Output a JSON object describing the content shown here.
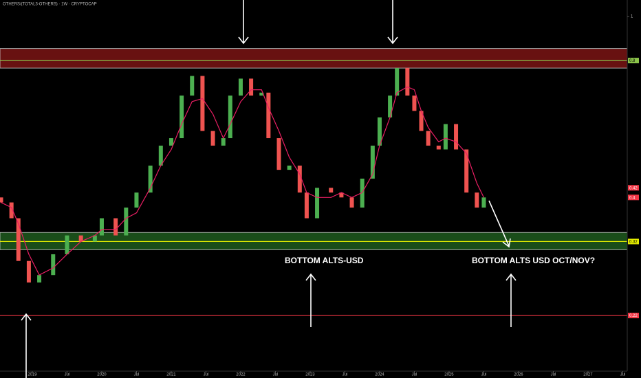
{
  "chart_data": {
    "type": "candlestick",
    "title": "OTHERS/(TOTAL3-OTHERS) · 1W · CRYPTOCAP",
    "x": [
      2018.55,
      2018.7,
      2018.8,
      2018.95,
      2019.1,
      2019.3,
      2019.5,
      2019.7,
      2019.9,
      2020.0,
      2020.2,
      2020.35,
      2020.5,
      2020.7,
      2020.85,
      2021.0,
      2021.15,
      2021.3,
      2021.45,
      2021.6,
      2021.75,
      2021.85,
      2022.0,
      2022.15,
      2022.3,
      2022.4,
      2022.55,
      2022.7,
      2022.85,
      2022.95,
      2023.1,
      2023.3,
      2023.45,
      2023.6,
      2023.75,
      2023.9,
      2024.0,
      2024.15,
      2024.25,
      2024.4,
      2024.5,
      2024.6,
      2024.7,
      2024.85,
      2024.95,
      2025.1,
      2025.25,
      2025.4,
      2025.5
    ],
    "open": [
      0.4,
      0.39,
      0.36,
      0.29,
      0.26,
      0.27,
      0.3,
      0.33,
      0.32,
      0.33,
      0.36,
      0.33,
      0.38,
      0.41,
      0.47,
      0.52,
      0.54,
      0.67,
      0.74,
      0.56,
      0.52,
      0.54,
      0.67,
      0.73,
      0.67,
      0.68,
      0.54,
      0.46,
      0.47,
      0.41,
      0.36,
      0.42,
      0.41,
      0.4,
      0.38,
      0.44,
      0.52,
      0.6,
      0.67,
      0.77,
      0.67,
      0.62,
      0.56,
      0.52,
      0.51,
      0.58,
      0.51,
      0.41,
      0.38
    ],
    "close": [
      0.39,
      0.36,
      0.29,
      0.26,
      0.27,
      0.3,
      0.33,
      0.32,
      0.33,
      0.36,
      0.33,
      0.38,
      0.41,
      0.47,
      0.52,
      0.54,
      0.67,
      0.74,
      0.56,
      0.52,
      0.54,
      0.67,
      0.73,
      0.67,
      0.68,
      0.54,
      0.46,
      0.47,
      0.41,
      0.36,
      0.42,
      0.41,
      0.4,
      0.38,
      0.44,
      0.52,
      0.6,
      0.67,
      0.77,
      0.67,
      0.62,
      0.56,
      0.52,
      0.51,
      0.58,
      0.51,
      0.41,
      0.38,
      0.4
    ],
    "up_color": "#4caf50",
    "down_color": "#ef5350",
    "overlay": {
      "color": "#e91e63",
      "values": [
        0.39,
        0.38,
        0.35,
        0.3,
        0.27,
        0.28,
        0.3,
        0.32,
        0.33,
        0.34,
        0.34,
        0.36,
        0.37,
        0.42,
        0.47,
        0.51,
        0.58,
        0.65,
        0.66,
        0.61,
        0.54,
        0.58,
        0.65,
        0.69,
        0.69,
        0.63,
        0.56,
        0.49,
        0.45,
        0.41,
        0.4,
        0.4,
        0.41,
        0.4,
        0.41,
        0.45,
        0.52,
        0.6,
        0.68,
        0.7,
        0.69,
        0.62,
        0.57,
        0.53,
        0.54,
        0.53,
        0.5,
        0.43,
        0.4
      ]
    },
    "zones": [
      {
        "from": 0.77,
        "to": 0.85,
        "color": "#7a1414"
      },
      {
        "from": 0.307,
        "to": 0.335,
        "color": "#1e5a1e"
      }
    ],
    "levels": [
      {
        "value": 0.8,
        "color": "#8bc34a",
        "line": true
      },
      {
        "value": 0.42,
        "color": "#f23645",
        "line": false
      },
      {
        "value": 0.4,
        "color": "#f23645",
        "line": false
      },
      {
        "value": 0.32,
        "color": "#e6ee00",
        "line": true
      },
      {
        "value": 0.22,
        "color": "#f23645",
        "line": true
      }
    ],
    "annotations": [
      "BOTTOM ALTS-USD",
      "BOTTOM ALTS USD OCT/NOV?"
    ],
    "log_scale": true,
    "xlim": [
      2018.535,
      2027.565
    ],
    "ylim": [
      0.166,
      1.087
    ],
    "yticks": [
      1
    ],
    "xticks": [
      2019,
      {
        "value": 2019.5,
        "label": "Jul"
      },
      2020,
      {
        "value": 2020.5,
        "label": "Jul"
      },
      2021,
      {
        "value": 2021.5,
        "label": "Jul"
      },
      2022,
      {
        "value": 2022.5,
        "label": "Jul"
      },
      2023,
      {
        "value": 2023.5,
        "label": "Jul"
      },
      2024,
      {
        "value": 2024.5,
        "label": "Jul"
      },
      2025,
      {
        "value": 2025.5,
        "label": "Jul"
      },
      2026,
      {
        "value": 2026.5,
        "label": "Jul"
      },
      2027,
      {
        "value": 2027.5,
        "label": "Jul"
      }
    ]
  }
}
